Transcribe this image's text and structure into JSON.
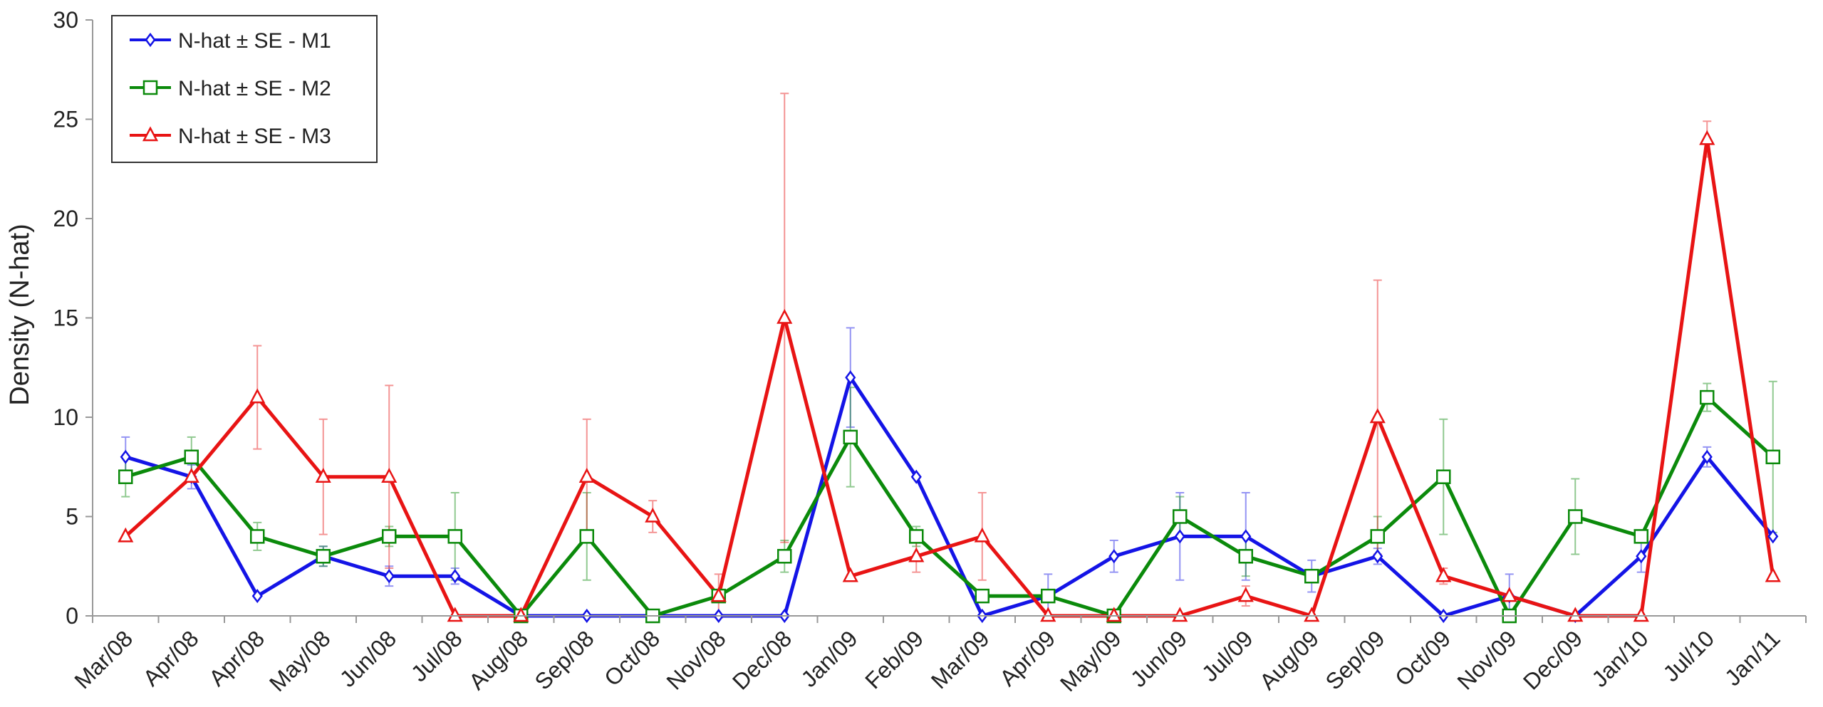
{
  "chart_data": {
    "type": "line",
    "title": "",
    "xlabel": "",
    "ylabel": "Density (N-hat)",
    "ylim": [
      0,
      30
    ],
    "yticks": [
      0,
      5,
      10,
      15,
      20,
      25,
      30
    ],
    "grid": false,
    "legend_position": "top-left",
    "categories": [
      "Mar/08",
      "Apr/08",
      "Apr/08",
      "May/08",
      "Jun/08",
      "Jul/08",
      "Aug/08",
      "Sep/08",
      "Oct/08",
      "Nov/08",
      "Dec/08",
      "Jan/09",
      "Feb/09",
      "Mar/09",
      "Apr/09",
      "May/09",
      "Jun/09",
      "Jul/09",
      "Aug/09",
      "Sep/09",
      "Oct/09",
      "Nov/09",
      "Dec/09",
      "Jan/10",
      "Jul/10",
      "Jan/11"
    ],
    "series": [
      {
        "name": "N-hat ± SE - M1",
        "color": "#1414e6",
        "marker": "diamond",
        "values": [
          8,
          7,
          1,
          3,
          2,
          2,
          0,
          0,
          0,
          0,
          0,
          12,
          7,
          0,
          1,
          3,
          4,
          4,
          2,
          3,
          0,
          1,
          0,
          3,
          8,
          4
        ],
        "se": [
          1.0,
          0.6,
          0,
          0.5,
          0.5,
          0.4,
          0,
          0,
          0,
          0,
          0,
          2.5,
          0,
          0,
          1.1,
          0.8,
          2.2,
          2.2,
          0.8,
          0.4,
          0,
          1.1,
          0,
          0.8,
          0.5,
          0
        ]
      },
      {
        "name": "N-hat ± SE - M2",
        "color": "#0b8a0b",
        "marker": "square",
        "values": [
          7,
          8,
          4,
          3,
          4,
          4,
          0,
          4,
          0,
          1,
          3,
          9,
          4,
          1,
          1,
          0,
          5,
          3,
          2,
          4,
          7,
          0,
          5,
          4,
          11,
          8
        ],
        "se": [
          1.0,
          1.0,
          0.7,
          0.5,
          0.5,
          2.2,
          0,
          2.2,
          0,
          0,
          0.8,
          2.5,
          0.5,
          0,
          0,
          0,
          1.0,
          1.0,
          0,
          1.0,
          2.9,
          0,
          1.9,
          0,
          0.7,
          3.8
        ]
      },
      {
        "name": "N-hat ± SE - M3",
        "color": "#e81414",
        "marker": "triangle",
        "values": [
          4,
          7,
          11,
          7,
          7,
          0,
          0,
          7,
          5,
          1,
          15,
          2,
          3,
          4,
          0,
          0,
          0,
          1,
          0,
          10,
          2,
          1,
          0,
          0,
          24,
          2
        ],
        "se": [
          0,
          0,
          2.6,
          2.9,
          4.6,
          0,
          0,
          2.9,
          0.8,
          1.1,
          11.3,
          0,
          0.8,
          2.2,
          0,
          0,
          0,
          0.5,
          0,
          6.9,
          0.4,
          0,
          0,
          0,
          0.9,
          0
        ]
      }
    ]
  }
}
